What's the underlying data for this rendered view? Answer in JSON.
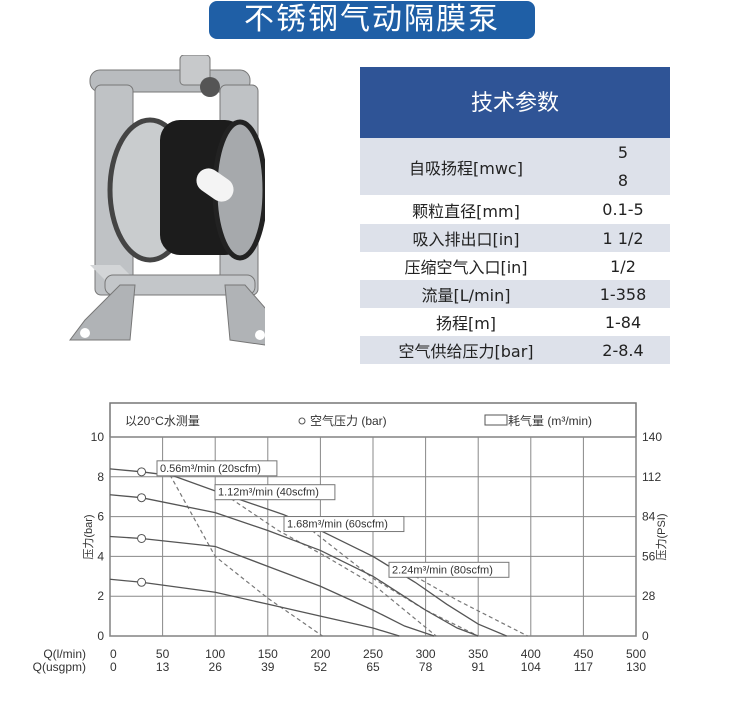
{
  "title": "不锈钢气动隔膜泵",
  "specs": {
    "header": "技术参数",
    "rows": [
      {
        "label": "自吸扬程[mwc]",
        "values": [
          "5",
          "8"
        ]
      },
      {
        "label": "颗粒直径[mm]",
        "values": [
          "0.1-5"
        ]
      },
      {
        "label": "吸入排出口[in]",
        "values": [
          "1 1/2"
        ]
      },
      {
        "label": "压缩空气入口[in]",
        "values": [
          "1/2"
        ]
      },
      {
        "label": "流量[L/min]",
        "values": [
          "1-358"
        ]
      },
      {
        "label": "扬程[m]",
        "values": [
          "1-84"
        ]
      },
      {
        "label": "空气供给压力[bar]",
        "values": [
          "2-8.4"
        ]
      }
    ]
  },
  "chart_data": {
    "type": "line",
    "legend": {
      "note": "以20°C水测量",
      "pressure": "空气压力 (bar)",
      "air": "耗气量 (m³/min)"
    },
    "ylabel": "压力(bar)",
    "ylabel_right": "压力(PSI)",
    "xlabel": "Q(l/min)",
    "xlabel2": "Q(usgpm)",
    "xlim": [
      0,
      500
    ],
    "ylim": [
      0,
      10
    ],
    "ylim_right": [
      0,
      140
    ],
    "x_ticks": [
      0,
      50,
      100,
      150,
      200,
      250,
      300,
      350,
      400,
      450,
      500
    ],
    "x2_ticks": [
      0,
      13,
      26,
      39,
      52,
      65,
      78,
      91,
      104,
      117,
      130
    ],
    "y_ticks": [
      0,
      2,
      4,
      6,
      8,
      10
    ],
    "y_right_ticks": [
      0,
      28,
      56,
      84,
      112,
      140
    ],
    "grid": true,
    "pressure_curves": [
      {
        "points": [
          [
            0,
            8.4
          ],
          [
            30,
            8.25
          ],
          [
            60,
            8.05
          ],
          [
            110,
            7.1
          ],
          [
            165,
            6.1
          ],
          [
            200,
            5.3
          ],
          [
            250,
            4.0
          ],
          [
            290,
            2.7
          ],
          [
            320,
            1.6
          ],
          [
            350,
            0.6
          ],
          [
            377,
            0
          ]
        ]
      },
      {
        "points": [
          [
            0,
            7.1
          ],
          [
            30,
            6.95
          ],
          [
            100,
            6.2
          ],
          [
            150,
            5.3
          ],
          [
            200,
            4.3
          ],
          [
            250,
            3.0
          ],
          [
            300,
            1.3
          ],
          [
            330,
            0.4
          ],
          [
            350,
            0
          ]
        ]
      },
      {
        "points": [
          [
            0,
            5.0
          ],
          [
            30,
            4.9
          ],
          [
            100,
            4.5
          ],
          [
            150,
            3.5
          ],
          [
            200,
            2.5
          ],
          [
            250,
            1.3
          ],
          [
            280,
            0.5
          ],
          [
            308,
            0
          ]
        ]
      },
      {
        "points": [
          [
            0,
            2.85
          ],
          [
            30,
            2.7
          ],
          [
            100,
            2.2
          ],
          [
            150,
            1.6
          ],
          [
            200,
            1.0
          ],
          [
            250,
            0.4
          ],
          [
            275,
            0
          ]
        ]
      }
    ],
    "marker_x": 30,
    "air_curves": [
      {
        "name": "0.56m³/min (20scfm)",
        "points": [
          [
            57,
            8.1
          ],
          [
            100,
            4.0
          ],
          [
            150,
            1.9
          ],
          [
            202,
            0
          ]
        ]
      },
      {
        "name": "1.12m³/min (40scfm)",
        "points": [
          [
            115,
            6.9
          ],
          [
            160,
            5.3
          ],
          [
            205,
            4.0
          ],
          [
            250,
            2.6
          ],
          [
            310,
            0
          ]
        ]
      },
      {
        "name": "1.68m³/min (60scfm)",
        "points": [
          [
            192,
            5.3
          ],
          [
            250,
            2.9
          ],
          [
            300,
            1.3
          ],
          [
            350,
            0
          ]
        ]
      },
      {
        "name": "2.24m³/min (80scfm)",
        "points": [
          [
            290,
            3.0
          ],
          [
            330,
            1.8
          ],
          [
            397,
            0
          ]
        ]
      }
    ]
  }
}
